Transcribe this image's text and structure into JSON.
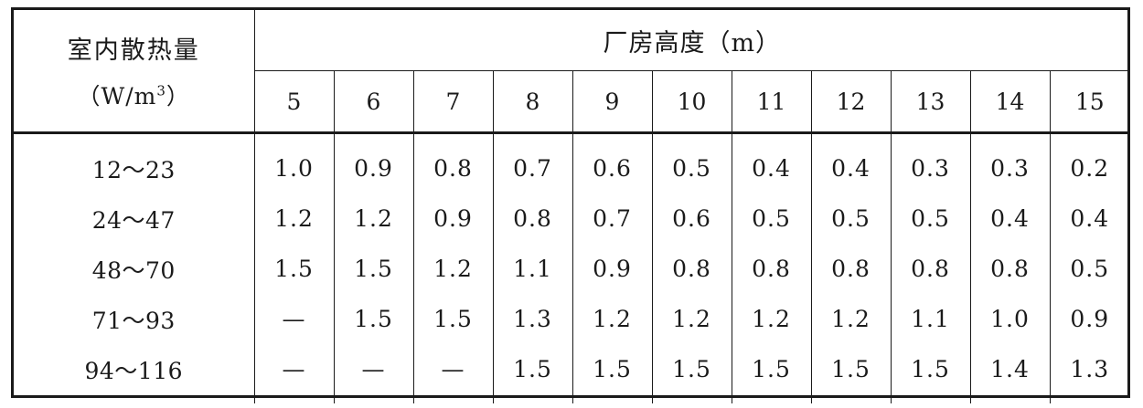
{
  "header": {
    "label_top": "室内散热量",
    "label_unit_prefix": "（W/m",
    "label_unit_sup": "3",
    "label_unit_suffix": "）",
    "group_title": "厂房高度（m）",
    "heights": [
      "5",
      "6",
      "7",
      "8",
      "9",
      "10",
      "11",
      "12",
      "13",
      "14",
      "15"
    ]
  },
  "rows": [
    {
      "label": "12～23",
      "values": [
        "1.0",
        "0.9",
        "0.8",
        "0.7",
        "0.6",
        "0.5",
        "0.4",
        "0.4",
        "0.3",
        "0.3",
        "0.2"
      ]
    },
    {
      "label": "24～47",
      "values": [
        "1.2",
        "1.2",
        "0.9",
        "0.8",
        "0.7",
        "0.6",
        "0.5",
        "0.5",
        "0.5",
        "0.4",
        "0.4"
      ]
    },
    {
      "label": "48～70",
      "values": [
        "1.5",
        "1.5",
        "1.2",
        "1.1",
        "0.9",
        "0.8",
        "0.8",
        "0.8",
        "0.8",
        "0.8",
        "0.5"
      ]
    },
    {
      "label": "71～93",
      "values": [
        "—",
        "1.5",
        "1.5",
        "1.3",
        "1.2",
        "1.2",
        "1.2",
        "1.2",
        "1.1",
        "1.0",
        "0.9"
      ]
    },
    {
      "label": "94～116",
      "values": [
        "—",
        "—",
        "—",
        "1.5",
        "1.5",
        "1.5",
        "1.5",
        "1.5",
        "1.5",
        "1.4",
        "1.3"
      ]
    }
  ]
}
